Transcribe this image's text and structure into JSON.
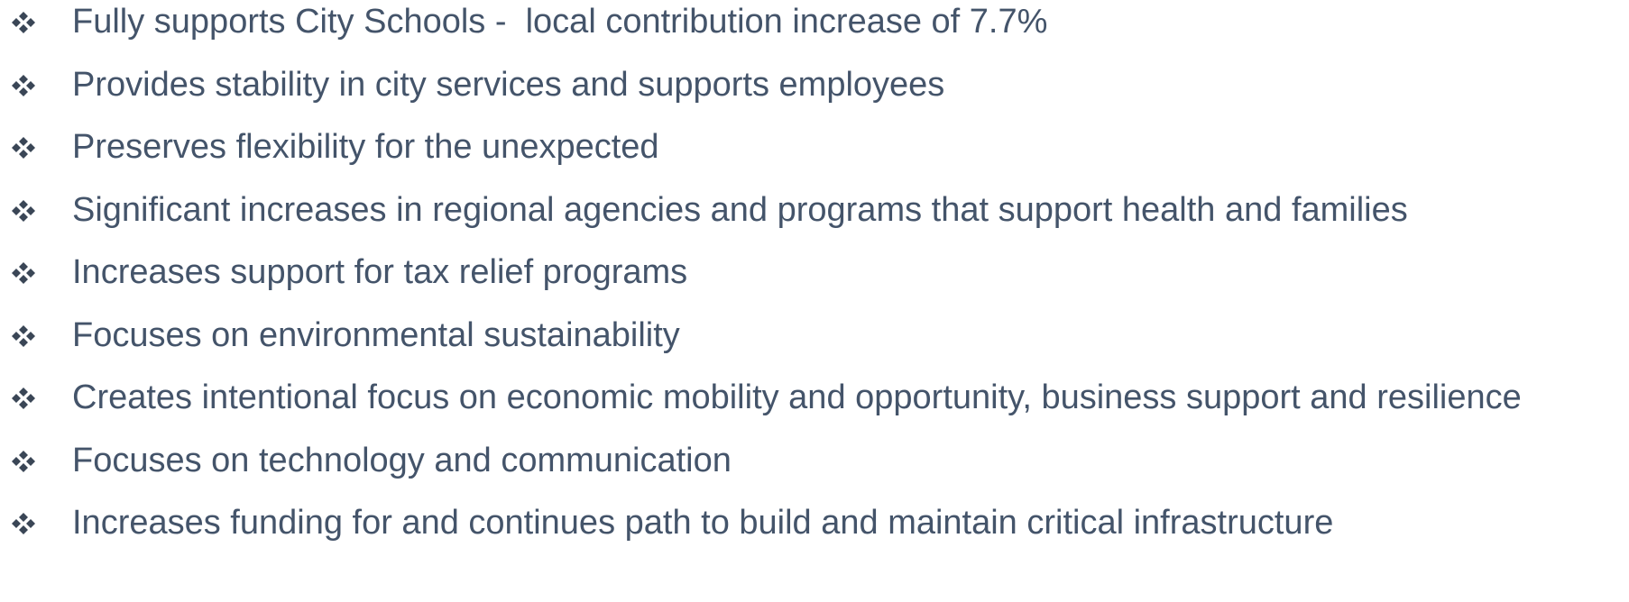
{
  "bullets": [
    "Fully supports City Schools -  local contribution increase of 7.7%",
    "Provides stability in city services and supports employees",
    "Preserves flexibility for the unexpected",
    "Significant increases in regional agencies and programs that support health and families",
    "Increases support for tax relief programs",
    "Focuses on environmental sustainability",
    "Creates intentional focus on economic mobility and opportunity, business support and resilience",
    "Focuses on technology and communication",
    "Increases funding for and continues path to build and maintain critical infrastructure"
  ]
}
